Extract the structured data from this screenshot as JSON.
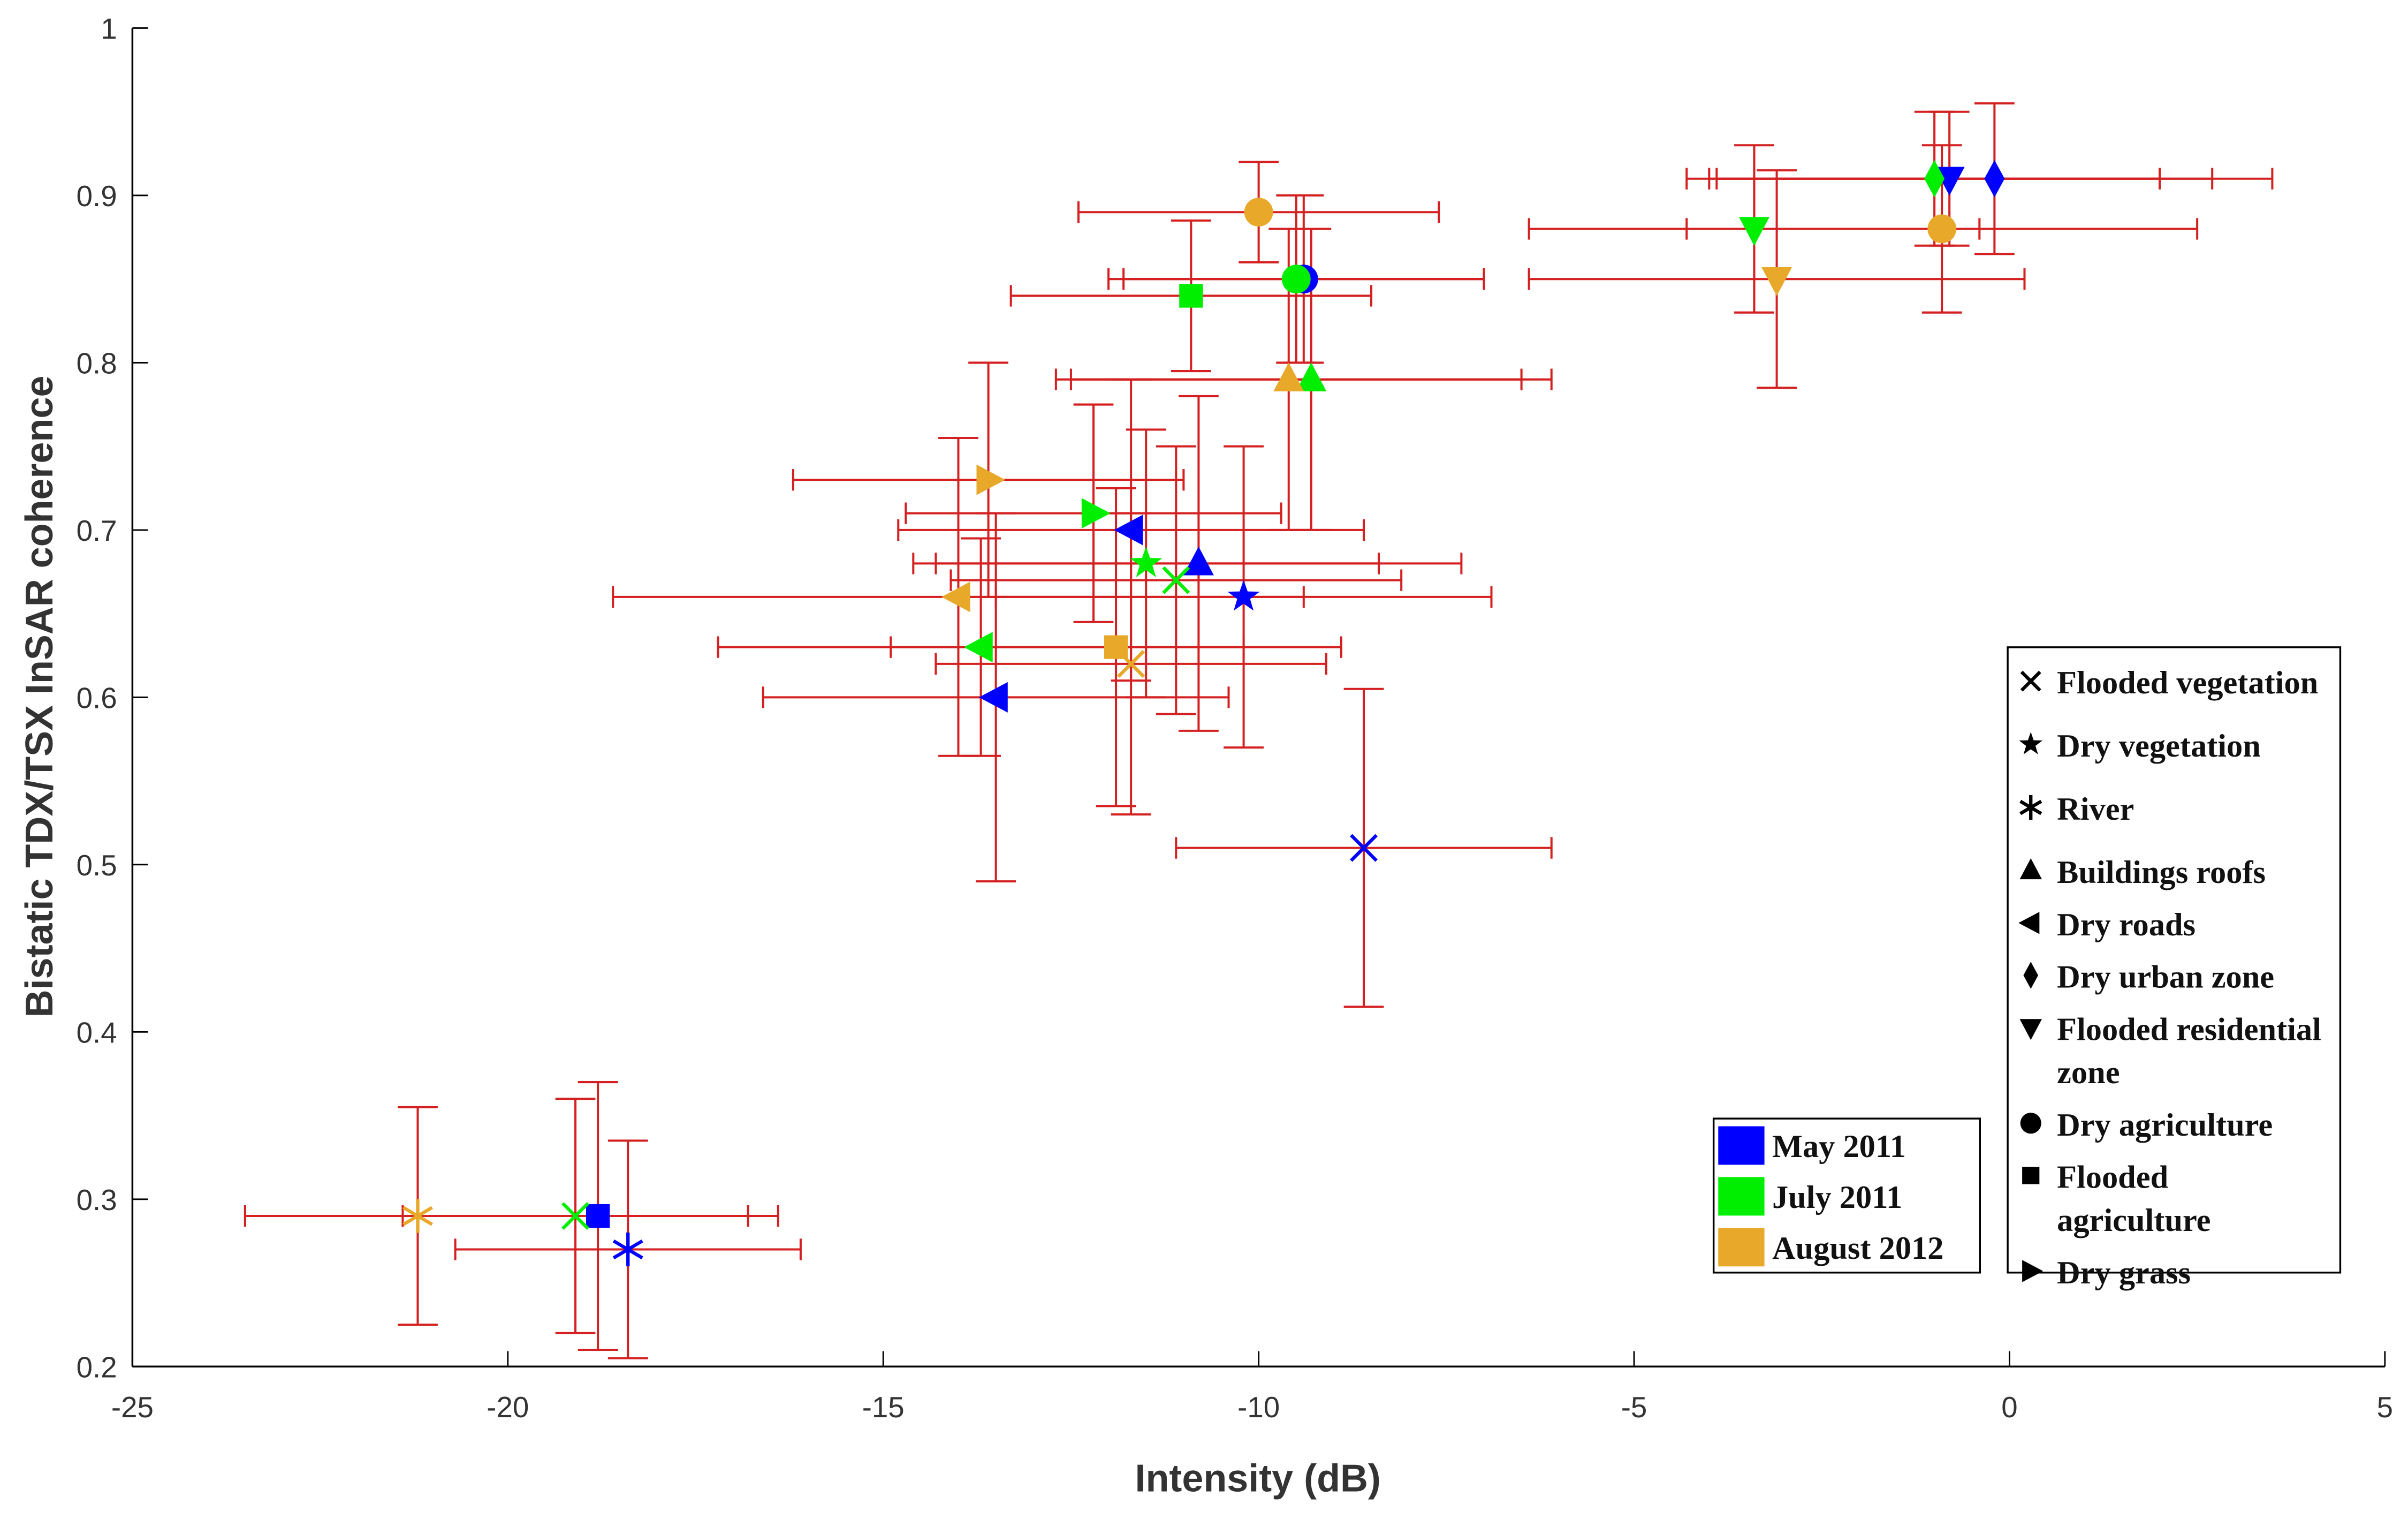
{
  "chart_data": {
    "type": "scatter",
    "x_label": "Intensity (dB)",
    "y_label": "Bistatic TDX/TSX InSAR coherence",
    "xlim": [
      -25,
      5
    ],
    "xticks": [
      -25,
      -20,
      -15,
      -10,
      -5,
      0,
      5
    ],
    "ylim": [
      0.2,
      1
    ],
    "yticks": [
      0.2,
      0.3,
      0.4,
      0.5,
      0.6,
      0.7,
      0.8,
      0.9,
      1
    ],
    "error_bar_color": "#d42020",
    "marker_legend": [
      {
        "label": "Flooded vegetation",
        "marker": "cross"
      },
      {
        "label": "Dry vegetation",
        "marker": "star"
      },
      {
        "label": "River",
        "marker": "asterisk"
      },
      {
        "label": "Buildings roofs",
        "marker": "triangle-up"
      },
      {
        "label": "Dry roads",
        "marker": "triangle-left"
      },
      {
        "label": "Dry urban zone",
        "marker": "diamond"
      },
      {
        "label": "Flooded residential zone",
        "marker": "triangle-down"
      },
      {
        "label": "Dry agriculture",
        "marker": "circle"
      },
      {
        "label": "Flooded agriculture",
        "marker": "square"
      },
      {
        "label": "Dry grass",
        "marker": "triangle-right"
      }
    ],
    "series": [
      {
        "name": "May 2011",
        "color": "#0000ff",
        "markers": [
          "diamond",
          "triangle-down",
          "circle",
          "triangle-up",
          "triangle-left",
          "star",
          "triangle-left",
          "cross",
          "square",
          "asterisk"
        ],
        "x": [
          -0.2,
          -0.8,
          -9.4,
          -10.8,
          -11.7,
          -10.2,
          -13.5,
          -8.6,
          -18.8,
          -18.4
        ],
        "values": [
          0.91,
          0.91,
          0.85,
          0.68,
          0.7,
          0.66,
          0.6,
          0.51,
          0.29,
          0.27
        ],
        "xerr": [
          3.7,
          3.5,
          2.4,
          3.5,
          3.1,
          3.3,
          3.1,
          2.5,
          2.4,
          2.3
        ],
        "yerr": [
          0.045,
          0.04,
          0.05,
          0.1,
          0.09,
          0.09,
          0.11,
          0.095,
          0.08,
          0.065
        ]
      },
      {
        "name": "July 2011",
        "color": "#00ee00",
        "markers": [
          "diamond",
          "triangle-down",
          "circle",
          "square",
          "triangle-up",
          "triangle-right",
          "star",
          "cross",
          "triangle-left",
          "cross"
        ],
        "x": [
          -1.0,
          -3.4,
          -9.5,
          -10.9,
          -9.3,
          -12.2,
          -11.5,
          -11.1,
          -13.7,
          -19.1
        ],
        "values": [
          0.91,
          0.88,
          0.85,
          0.84,
          0.79,
          0.71,
          0.68,
          0.67,
          0.63,
          0.29
        ],
        "xerr": [
          3.0,
          3.0,
          2.5,
          2.4,
          3.2,
          2.5,
          3.1,
          3.0,
          3.5,
          2.3
        ],
        "yerr": [
          0.04,
          0.05,
          0.05,
          0.045,
          0.09,
          0.065,
          0.08,
          0.08,
          0.065,
          0.07
        ]
      },
      {
        "name": "August 2012",
        "color": "#e8a92a",
        "markers": [
          "circle",
          "triangle-down",
          "circle",
          "triangle-up",
          "triangle-right",
          "triangle-left",
          "square",
          "cross",
          "asterisk"
        ],
        "x": [
          -0.9,
          -3.1,
          -10.0,
          -9.6,
          -13.6,
          -14.0,
          -11.9,
          -11.7,
          -21.2
        ],
        "values": [
          0.88,
          0.85,
          0.89,
          0.79,
          0.73,
          0.66,
          0.63,
          0.62,
          0.29
        ],
        "xerr": [
          3.4,
          3.3,
          2.4,
          3.1,
          2.6,
          4.6,
          3.0,
          2.6,
          2.3
        ],
        "yerr": [
          0.05,
          0.065,
          0.03,
          0.09,
          0.07,
          0.095,
          0.095,
          0.09,
          0.065
        ]
      }
    ]
  }
}
